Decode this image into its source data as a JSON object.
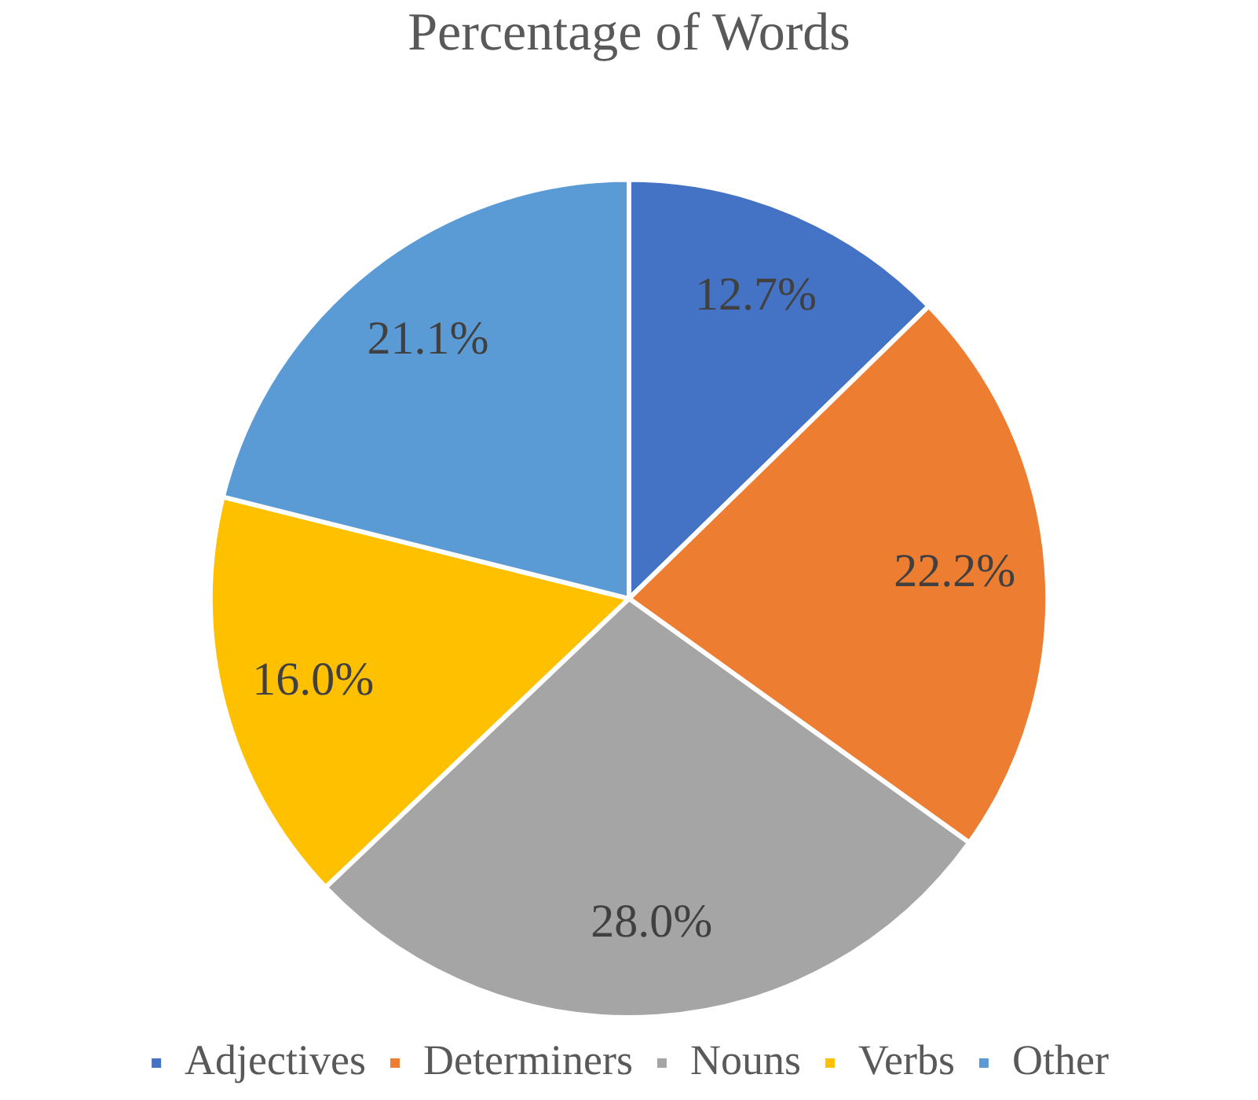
{
  "chart_data": {
    "type": "pie",
    "title": "Percentage of Words",
    "categories": [
      "Adjectives",
      "Determiners",
      "Nouns",
      "Verbs",
      "Other"
    ],
    "values": [
      12.7,
      22.2,
      28.0,
      16.0,
      21.1
    ],
    "colors": [
      "#4472c4",
      "#ed7d31",
      "#a5a5a5",
      "#ffc000",
      "#5b9bd5"
    ],
    "value_labels": [
      "12.7%",
      "22.2%",
      "28.0%",
      "16.0%",
      "21.1%"
    ],
    "legend": "bottom"
  }
}
